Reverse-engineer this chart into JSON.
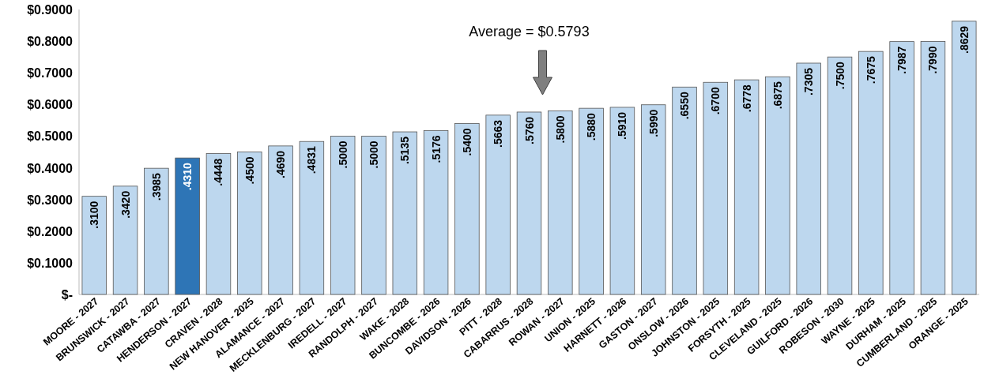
{
  "chart_data": {
    "type": "bar",
    "categories": [
      "MOORE - 2027",
      "BRUNSWICK - 2027",
      "CATAWBA - 2027",
      "HENDERSON - 2027",
      "CRAVEN - 2028",
      "NEW HANOVER - 2025",
      "ALAMANCE - 2027",
      "MECKLENBURG - 2027",
      "IREDELL - 2027",
      "RANDOLPH - 2027",
      "WAKE - 2028",
      "BUNCOMBE - 2026",
      "DAVIDSON - 2026",
      "PITT - 2028",
      "CABARRUS - 2028",
      "ROWAN - 2027",
      "UNION - 2025",
      "HARNETT - 2026",
      "GASTON - 2027",
      "ONSLOW - 2026",
      "JOHNSTON - 2025",
      "FORSYTH - 2025",
      "CLEVELAND - 2025",
      "GUILFORD - 2026",
      "ROBESON - 2030",
      "WAYNE - 2025",
      "DURHAM - 2025",
      "CUMBERLAND - 2025",
      "ORANGE - 2025"
    ],
    "values": [
      0.31,
      0.342,
      0.3985,
      0.431,
      0.4448,
      0.45,
      0.469,
      0.4831,
      0.5,
      0.5,
      0.5135,
      0.5176,
      0.54,
      0.5663,
      0.576,
      0.58,
      0.588,
      0.591,
      0.599,
      0.655,
      0.67,
      0.6778,
      0.6875,
      0.7305,
      0.75,
      0.7675,
      0.7987,
      0.799,
      0.8629
    ],
    "value_labels": [
      ".3100",
      ".3420",
      ".3985",
      ".4310",
      ".4448",
      ".4500",
      ".4690",
      ".4831",
      ".5000",
      ".5000",
      ".5135",
      ".5176",
      ".5400",
      ".5663",
      ".5760",
      ".5800",
      ".5880",
      ".5910",
      ".5990",
      ".6550",
      ".6700",
      ".6778",
      ".6875",
      ".7305",
      ".7500",
      ".7675",
      ".7987",
      ".7990",
      ".8629"
    ],
    "colors": [
      "#bdd7ee",
      "#bdd7ee",
      "#bdd7ee",
      "#2e75b6",
      "#bdd7ee",
      "#bdd7ee",
      "#bdd7ee",
      "#bdd7ee",
      "#bdd7ee",
      "#bdd7ee",
      "#bdd7ee",
      "#bdd7ee",
      "#bdd7ee",
      "#bdd7ee",
      "#bdd7ee",
      "#bdd7ee",
      "#bdd7ee",
      "#bdd7ee",
      "#bdd7ee",
      "#bdd7ee",
      "#bdd7ee",
      "#bdd7ee",
      "#bdd7ee",
      "#bdd7ee",
      "#bdd7ee",
      "#bdd7ee",
      "#bdd7ee",
      "#bdd7ee",
      "#bdd7ee"
    ],
    "ylim": [
      0,
      0.9
    ],
    "yticks": [
      {
        "value": 0,
        "label": "$-"
      },
      {
        "value": 0.1,
        "label": "$0.1000"
      },
      {
        "value": 0.2,
        "label": "$0.2000"
      },
      {
        "value": 0.3,
        "label": "$0.3000"
      },
      {
        "value": 0.4,
        "label": "$0.4000"
      },
      {
        "value": 0.5,
        "label": "$0.5000"
      },
      {
        "value": 0.6,
        "label": "$0.6000"
      },
      {
        "value": 0.7,
        "label": "$0.7000"
      },
      {
        "value": 0.8,
        "label": "$0.8000"
      },
      {
        "value": 0.9,
        "label": "$0.9000"
      }
    ],
    "annotations": [
      "Average = $0.5793"
    ]
  }
}
